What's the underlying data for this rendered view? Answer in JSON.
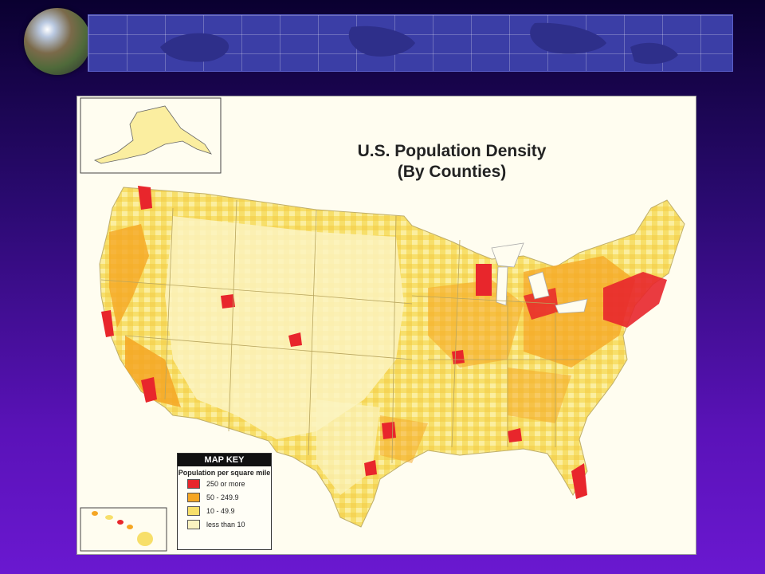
{
  "map": {
    "title_line1": "U.S. Population Density",
    "title_line2": "(By Counties)"
  },
  "map_key": {
    "header": "MAP KEY",
    "subtitle": "Population per square mile",
    "items": [
      {
        "label": "250 or more",
        "color": "#e8262c"
      },
      {
        "label": "50 - 249.9",
        "color": "#f5a623"
      },
      {
        "label": "10 - 49.9",
        "color": "#f7df6a"
      },
      {
        "label": "less than 10",
        "color": "#fbf3c0"
      }
    ]
  },
  "colors": {
    "background_top": "#0a0030",
    "background_bottom": "#6a18d0",
    "map_background": "#fffdf0"
  }
}
